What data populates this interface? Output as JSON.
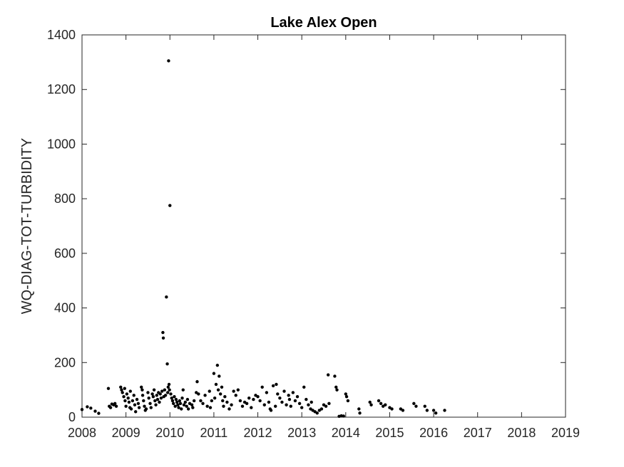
{
  "chart_data": {
    "type": "scatter",
    "title": "Lake Alex Open",
    "xlabel": "",
    "ylabel": "WQ-DIAG-TOT-TURBIDITY",
    "xlim": [
      2008,
      2019
    ],
    "ylim": [
      0,
      1400
    ],
    "xticks": [
      "2008",
      "2009",
      "2010",
      "2011",
      "2012",
      "2013",
      "2014",
      "2015",
      "2016",
      "2017",
      "2018",
      "2019"
    ],
    "yticks": [
      "0",
      "200",
      "400",
      "600",
      "800",
      "1000",
      "1200",
      "1400"
    ],
    "grid": false,
    "marker_color": "#000000",
    "series": [
      {
        "points": [
          [
            2008.0,
            28
          ],
          [
            2008.12,
            38
          ],
          [
            2008.2,
            33
          ],
          [
            2008.3,
            22
          ],
          [
            2008.38,
            14
          ],
          [
            2008.6,
            105
          ],
          [
            2008.62,
            40
          ],
          [
            2008.65,
            35
          ],
          [
            2008.68,
            48
          ],
          [
            2008.72,
            45
          ],
          [
            2008.75,
            50
          ],
          [
            2008.78,
            40
          ],
          [
            2008.88,
            110
          ],
          [
            2008.9,
            100
          ],
          [
            2008.92,
            90
          ],
          [
            2008.95,
            75
          ],
          [
            2008.97,
            105
          ],
          [
            2008.98,
            60
          ],
          [
            2009.0,
            40
          ],
          [
            2009.02,
            85
          ],
          [
            2009.05,
            70
          ],
          [
            2009.07,
            55
          ],
          [
            2009.09,
            35
          ],
          [
            2009.1,
            95
          ],
          [
            2009.12,
            30
          ],
          [
            2009.15,
            60
          ],
          [
            2009.18,
            80
          ],
          [
            2009.2,
            45
          ],
          [
            2009.22,
            20
          ],
          [
            2009.25,
            65
          ],
          [
            2009.28,
            50
          ],
          [
            2009.3,
            35
          ],
          [
            2009.35,
            110
          ],
          [
            2009.37,
            100
          ],
          [
            2009.38,
            80
          ],
          [
            2009.4,
            60
          ],
          [
            2009.42,
            40
          ],
          [
            2009.44,
            25
          ],
          [
            2009.46,
            30
          ],
          [
            2009.5,
            90
          ],
          [
            2009.52,
            70
          ],
          [
            2009.55,
            50
          ],
          [
            2009.57,
            35
          ],
          [
            2009.6,
            85
          ],
          [
            2009.62,
            75
          ],
          [
            2009.64,
            100
          ],
          [
            2009.66,
            60
          ],
          [
            2009.68,
            45
          ],
          [
            2009.7,
            80
          ],
          [
            2009.72,
            65
          ],
          [
            2009.74,
            90
          ],
          [
            2009.76,
            55
          ],
          [
            2009.78,
            85
          ],
          [
            2009.8,
            70
          ],
          [
            2009.82,
            95
          ],
          [
            2009.84,
            310
          ],
          [
            2009.85,
            290
          ],
          [
            2009.86,
            75
          ],
          [
            2009.88,
            100
          ],
          [
            2009.9,
            80
          ],
          [
            2009.92,
            440
          ],
          [
            2009.94,
            195
          ],
          [
            2009.95,
            90
          ],
          [
            2009.96,
            110
          ],
          [
            2009.97,
            1305
          ],
          [
            2009.98,
            120
          ],
          [
            2009.99,
            100
          ],
          [
            2010.0,
            775
          ],
          [
            2010.02,
            85
          ],
          [
            2010.04,
            70
          ],
          [
            2010.06,
            60
          ],
          [
            2010.08,
            50
          ],
          [
            2010.1,
            75
          ],
          [
            2010.12,
            40
          ],
          [
            2010.14,
            65
          ],
          [
            2010.16,
            55
          ],
          [
            2010.18,
            45
          ],
          [
            2010.2,
            35
          ],
          [
            2010.22,
            60
          ],
          [
            2010.24,
            50
          ],
          [
            2010.26,
            30
          ],
          [
            2010.28,
            70
          ],
          [
            2010.3,
            100
          ],
          [
            2010.32,
            45
          ],
          [
            2010.35,
            55
          ],
          [
            2010.38,
            40
          ],
          [
            2010.4,
            65
          ],
          [
            2010.42,
            30
          ],
          [
            2010.45,
            50
          ],
          [
            2010.5,
            45
          ],
          [
            2010.52,
            35
          ],
          [
            2010.55,
            60
          ],
          [
            2010.6,
            90
          ],
          [
            2010.62,
            130
          ],
          [
            2010.65,
            85
          ],
          [
            2010.7,
            60
          ],
          [
            2010.75,
            50
          ],
          [
            2010.8,
            80
          ],
          [
            2010.85,
            40
          ],
          [
            2010.9,
            95
          ],
          [
            2010.92,
            35
          ],
          [
            2010.95,
            60
          ],
          [
            2011.0,
            160
          ],
          [
            2011.02,
            70
          ],
          [
            2011.05,
            120
          ],
          [
            2011.08,
            190
          ],
          [
            2011.1,
            100
          ],
          [
            2011.12,
            150
          ],
          [
            2011.15,
            85
          ],
          [
            2011.18,
            110
          ],
          [
            2011.2,
            60
          ],
          [
            2011.22,
            40
          ],
          [
            2011.25,
            75
          ],
          [
            2011.3,
            55
          ],
          [
            2011.35,
            30
          ],
          [
            2011.4,
            45
          ],
          [
            2011.45,
            95
          ],
          [
            2011.5,
            80
          ],
          [
            2011.55,
            100
          ],
          [
            2011.6,
            60
          ],
          [
            2011.65,
            40
          ],
          [
            2011.7,
            55
          ],
          [
            2011.75,
            50
          ],
          [
            2011.8,
            70
          ],
          [
            2011.85,
            35
          ],
          [
            2011.9,
            65
          ],
          [
            2011.95,
            80
          ],
          [
            2012.0,
            75
          ],
          [
            2012.05,
            60
          ],
          [
            2012.1,
            110
          ],
          [
            2012.15,
            45
          ],
          [
            2012.2,
            90
          ],
          [
            2012.25,
            55
          ],
          [
            2012.28,
            30
          ],
          [
            2012.3,
            25
          ],
          [
            2012.35,
            115
          ],
          [
            2012.4,
            40
          ],
          [
            2012.42,
            120
          ],
          [
            2012.45,
            85
          ],
          [
            2012.5,
            70
          ],
          [
            2012.55,
            55
          ],
          [
            2012.6,
            95
          ],
          [
            2012.65,
            45
          ],
          [
            2012.7,
            80
          ],
          [
            2012.72,
            65
          ],
          [
            2012.75,
            40
          ],
          [
            2012.8,
            90
          ],
          [
            2012.85,
            60
          ],
          [
            2012.9,
            75
          ],
          [
            2012.95,
            50
          ],
          [
            2013.0,
            35
          ],
          [
            2013.05,
            110
          ],
          [
            2013.1,
            65
          ],
          [
            2013.15,
            45
          ],
          [
            2013.2,
            30
          ],
          [
            2013.22,
            55
          ],
          [
            2013.25,
            25
          ],
          [
            2013.3,
            20
          ],
          [
            2013.35,
            15
          ],
          [
            2013.4,
            25
          ],
          [
            2013.45,
            30
          ],
          [
            2013.5,
            45
          ],
          [
            2013.55,
            40
          ],
          [
            2013.6,
            155
          ],
          [
            2013.62,
            50
          ],
          [
            2013.75,
            150
          ],
          [
            2013.78,
            110
          ],
          [
            2013.8,
            100
          ],
          [
            2013.85,
            3
          ],
          [
            2013.9,
            5
          ],
          [
            2013.95,
            4
          ],
          [
            2014.0,
            85
          ],
          [
            2014.02,
            75
          ],
          [
            2014.05,
            60
          ],
          [
            2014.3,
            30
          ],
          [
            2014.32,
            15
          ],
          [
            2014.55,
            55
          ],
          [
            2014.58,
            45
          ],
          [
            2014.75,
            60
          ],
          [
            2014.8,
            50
          ],
          [
            2014.85,
            40
          ],
          [
            2014.9,
            45
          ],
          [
            2015.0,
            35
          ],
          [
            2015.05,
            30
          ],
          [
            2015.25,
            30
          ],
          [
            2015.3,
            25
          ],
          [
            2015.55,
            50
          ],
          [
            2015.6,
            40
          ],
          [
            2015.8,
            40
          ],
          [
            2015.85,
            25
          ],
          [
            2016.0,
            25
          ],
          [
            2016.05,
            15
          ],
          [
            2016.25,
            25
          ]
        ]
      }
    ]
  }
}
